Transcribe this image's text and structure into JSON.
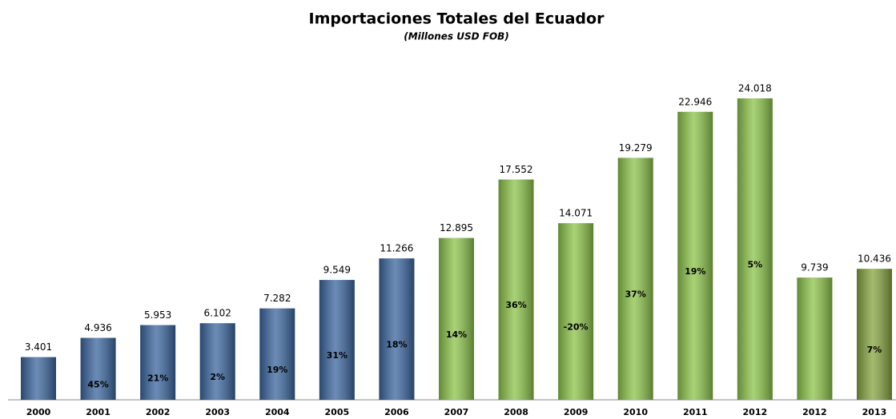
{
  "chart_data": {
    "type": "bar",
    "title": "Importaciones Totales del Ecuador",
    "subtitle": "(Millones USD FOB)",
    "categories": [
      "2000",
      "2001",
      "2002",
      "2003",
      "2004",
      "2005",
      "2006",
      "2007",
      "2008",
      "2009",
      "2010",
      "2011",
      "2012",
      "2012",
      "2013"
    ],
    "values": [
      3401,
      4936,
      5953,
      6102,
      7282,
      9549,
      11266,
      12895,
      17552,
      14071,
      19279,
      22946,
      24018,
      9739,
      10436
    ],
    "value_labels": [
      "3.401",
      "4.936",
      "5.953",
      "6.102",
      "7.282",
      "9.549",
      "11.266",
      "12.895",
      "17.552",
      "14.071",
      "19.279",
      "22.946",
      "24.018",
      "9.739",
      "10.436"
    ],
    "growth_labels": [
      null,
      "45%",
      "21%",
      "2%",
      "19%",
      "31%",
      "18%",
      "14%",
      "36%",
      "-20%",
      "37%",
      "19%",
      "5%",
      null,
      "7%"
    ],
    "colors": [
      "#3a659e",
      "#3a659e",
      "#3a659e",
      "#3a659e",
      "#3a659e",
      "#3a659e",
      "#3a659e",
      "#8cc34a",
      "#8cc34a",
      "#8cc34a",
      "#8cc34a",
      "#8cc34a",
      "#8cc34a",
      "#8cc34a",
      "#86a33f"
    ]
  }
}
